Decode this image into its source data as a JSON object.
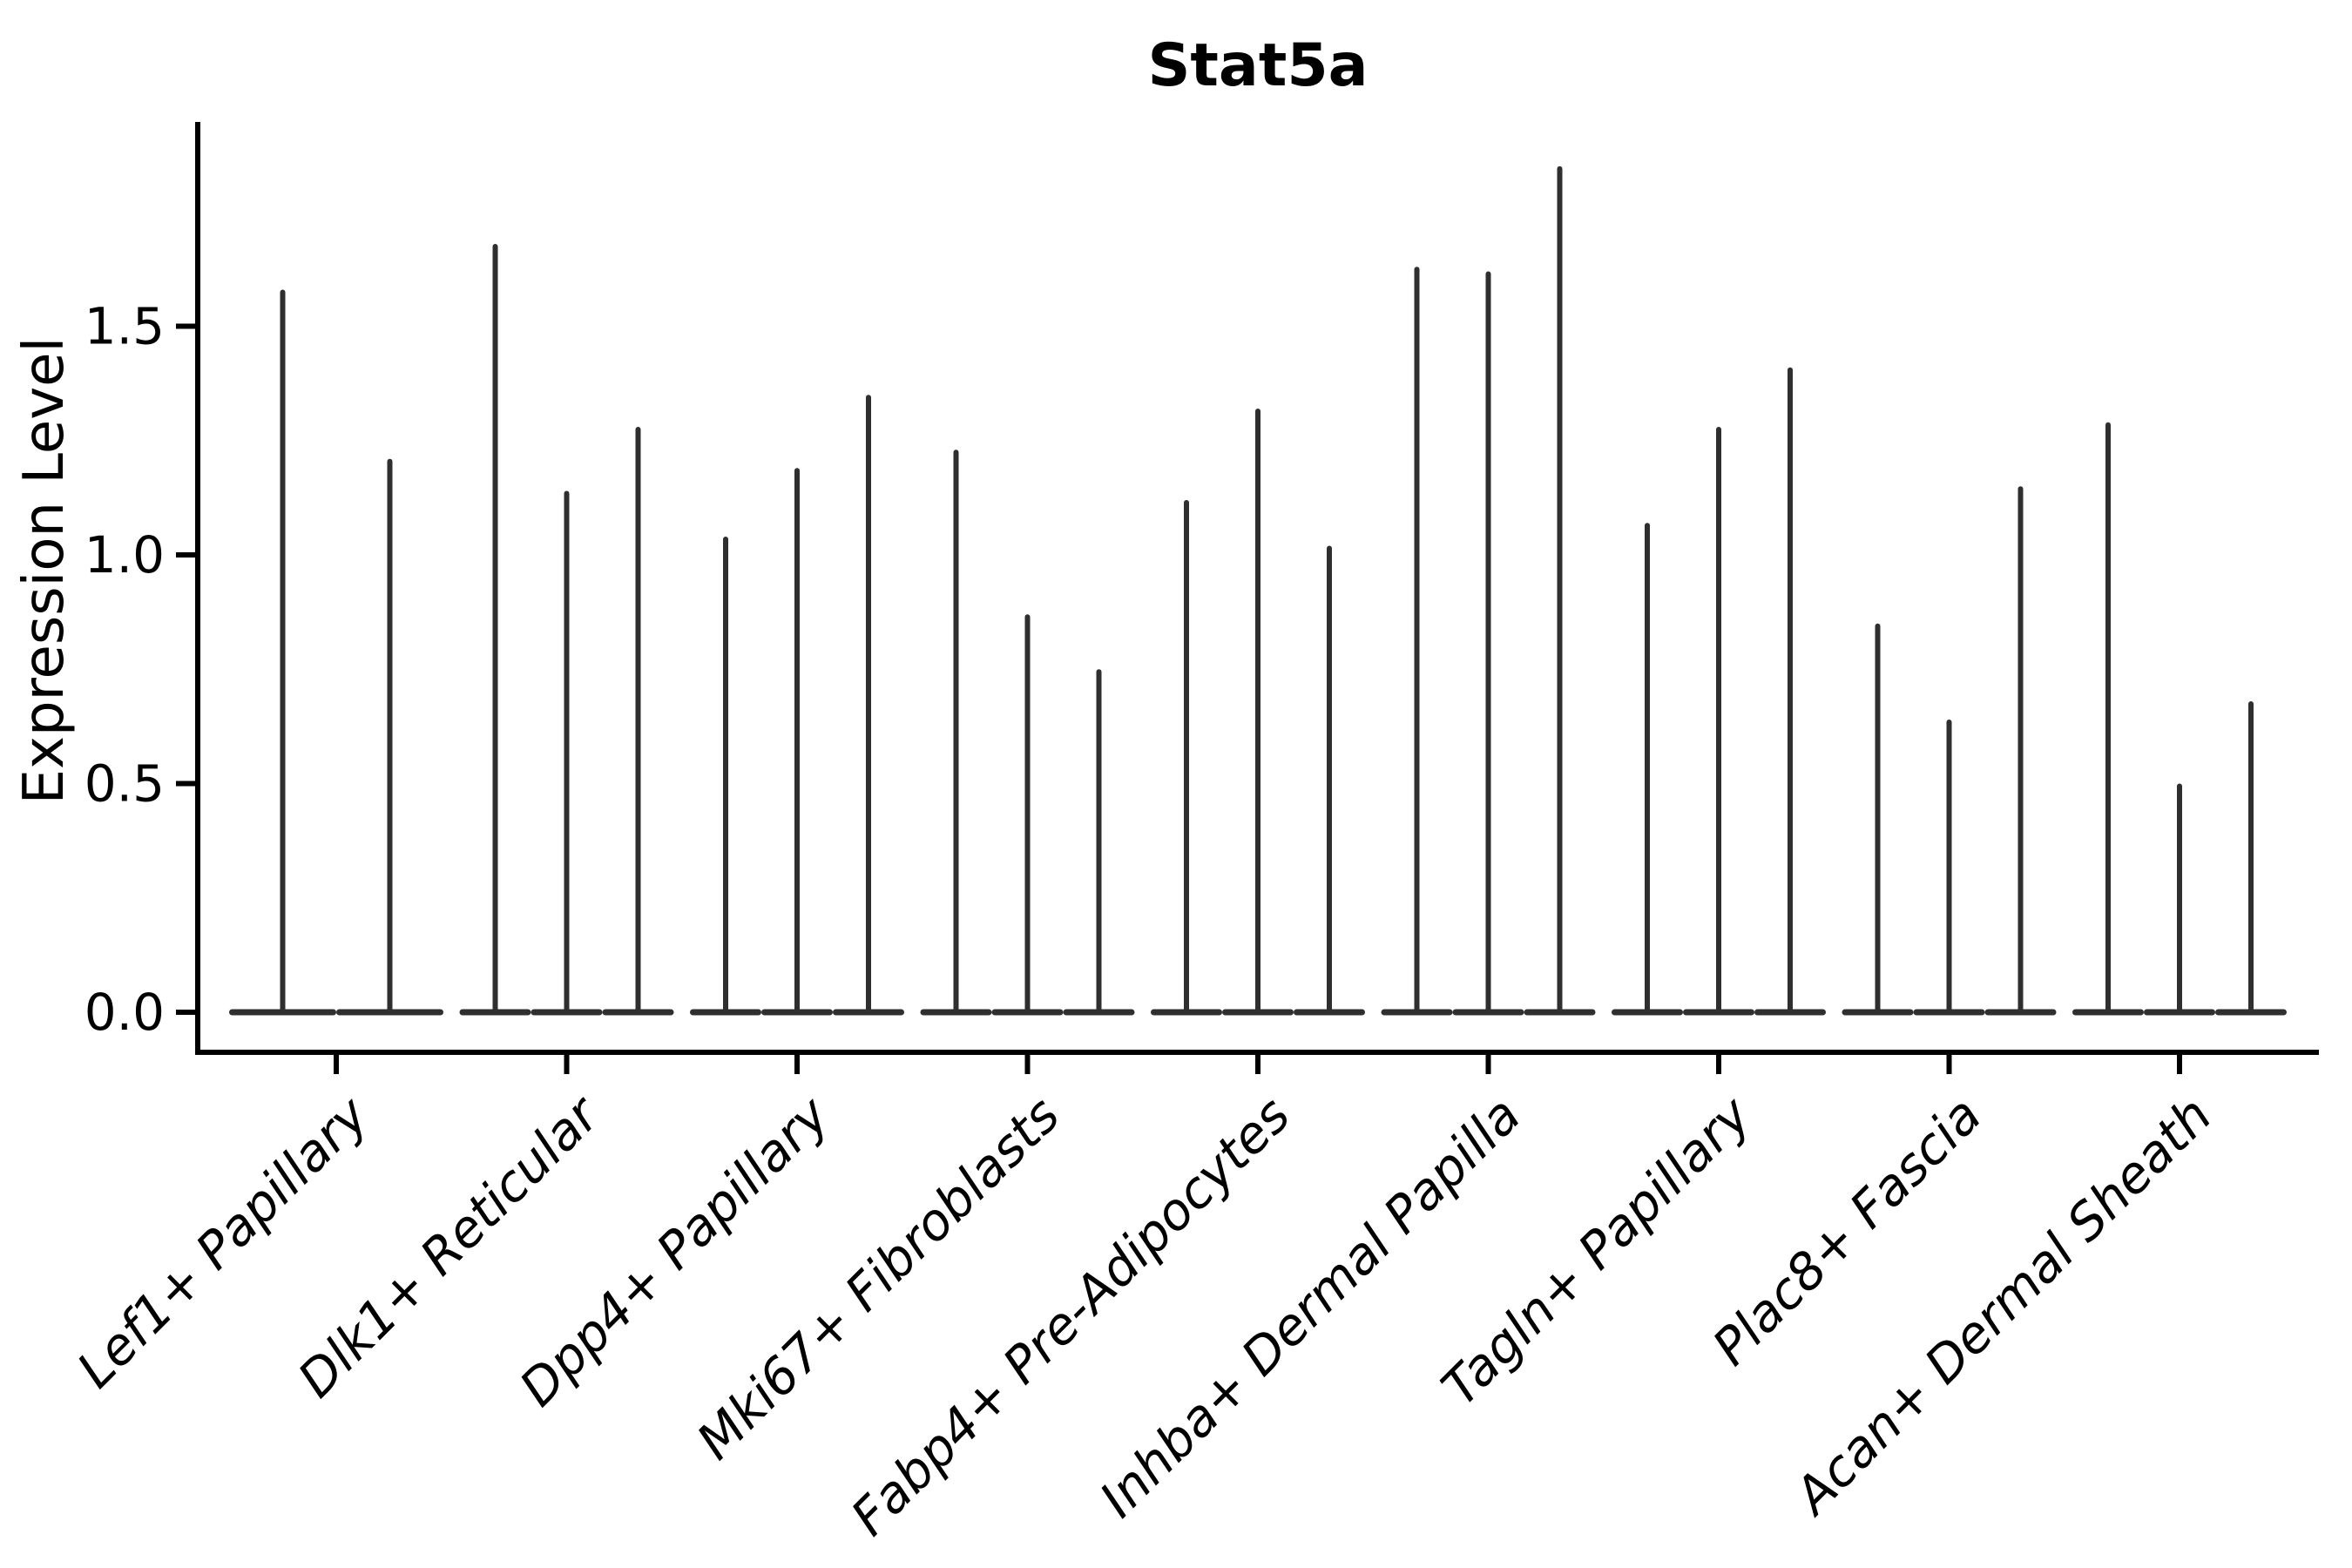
{
  "figure": {
    "background": "#ffffff"
  },
  "chart_data": {
    "type": "violin",
    "title": "Stat5a",
    "xlabel": "",
    "ylabel": "Expression Level",
    "ylim": [
      -0.09,
      1.94
    ],
    "grid": false,
    "legend": "none",
    "yticks": [
      {
        "label": "0.0",
        "value": 0.0
      },
      {
        "label": "0.5",
        "value": 0.5
      },
      {
        "label": "1.0",
        "value": 1.0
      },
      {
        "label": "1.5",
        "value": 1.5
      }
    ],
    "categories": [
      "Lef1+ Papillary",
      "Dlk1+ Reticular",
      "Dpp4+ Papillary",
      "Mki67+ Fibroblasts",
      "Fabp4+ Pre-Adipocytes",
      "Inhba+ Dermal Papilla",
      "Tagln+ Papillary",
      "Plac8+ Fascia",
      "Acan+ Dermal Sheath"
    ],
    "groups": [
      {
        "category": "Lef1+ Papillary",
        "violin_maxima": [
          1.58,
          1.21
        ]
      },
      {
        "category": "Dlk1+ Reticular",
        "violin_maxima": [
          1.68,
          1.14,
          1.28
        ]
      },
      {
        "category": "Dpp4+ Papillary",
        "violin_maxima": [
          1.04,
          1.19,
          1.35
        ]
      },
      {
        "category": "Mki67+ Fibroblasts",
        "violin_maxima": [
          1.23,
          0.87,
          0.75
        ]
      },
      {
        "category": "Fabp4+ Pre-Adipocytes",
        "violin_maxima": [
          1.12,
          1.32,
          1.02
        ]
      },
      {
        "category": "Inhba+ Dermal Papilla",
        "violin_maxima": [
          1.63,
          1.62,
          1.85
        ]
      },
      {
        "category": "Tagln+ Papillary",
        "violin_maxima": [
          1.07,
          1.28,
          1.41
        ]
      },
      {
        "category": "Plac8+ Fascia",
        "violin_maxima": [
          0.85,
          0.64,
          1.15
        ]
      },
      {
        "category": "Acan+ Dermal Sheath",
        "violin_maxima": [
          1.29,
          0.5,
          0.68
        ]
      }
    ],
    "colors": {
      "ink": "#000000",
      "violin": "#2f2f2f"
    }
  }
}
